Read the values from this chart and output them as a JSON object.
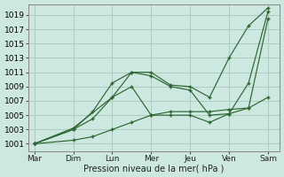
{
  "background_color": "#cce8e0",
  "grid_color": "#b0ccbf",
  "line_color": "#2d6632",
  "xlabel": "Pression niveau de la mer( hPa )",
  "days": [
    "Mar",
    "Dim",
    "Lun",
    "Mer",
    "Jeu",
    "Ven",
    "Sam"
  ],
  "day_x": [
    0,
    1,
    2,
    3,
    4,
    5,
    6
  ],
  "yticks": [
    1001,
    1003,
    1005,
    1007,
    1009,
    1011,
    1013,
    1015,
    1017,
    1019
  ],
  "series": [
    {
      "x": [
        0,
        1,
        2,
        2.5,
        3,
        3.5,
        4,
        4.5,
        5,
        5.5,
        6
      ],
      "y": [
        1001,
        1003.2,
        1007.5,
        1011.0,
        1011.0,
        1009.2,
        1009.0,
        1007.5,
        1013.0,
        1017.5,
        1020.0
      ]
    },
    {
      "x": [
        0,
        1,
        1.5,
        2,
        2.5,
        3,
        3.5,
        4,
        4.5,
        5,
        5.5,
        6
      ],
      "y": [
        1001,
        1003.0,
        1005.5,
        1009.5,
        1011.0,
        1010.5,
        1009.0,
        1008.5,
        1005.0,
        1005.2,
        1009.5,
        1019.5
      ]
    },
    {
      "x": [
        0,
        1,
        1.5,
        2,
        2.5,
        3,
        3.5,
        4,
        4.5,
        5,
        5.5,
        6
      ],
      "y": [
        1001,
        1003.0,
        1004.5,
        1007.5,
        1009.0,
        1005.0,
        1005.0,
        1005.0,
        1004.0,
        1005.2,
        1006.0,
        1018.5
      ]
    },
    {
      "x": [
        0,
        1,
        1.5,
        2,
        2.5,
        3,
        3.5,
        4,
        4.5,
        5,
        5.5,
        6
      ],
      "y": [
        1001,
        1001.5,
        1002.0,
        1003.0,
        1004.0,
        1005.0,
        1005.5,
        1005.5,
        1005.5,
        1005.8,
        1006.0,
        1007.5
      ]
    }
  ]
}
